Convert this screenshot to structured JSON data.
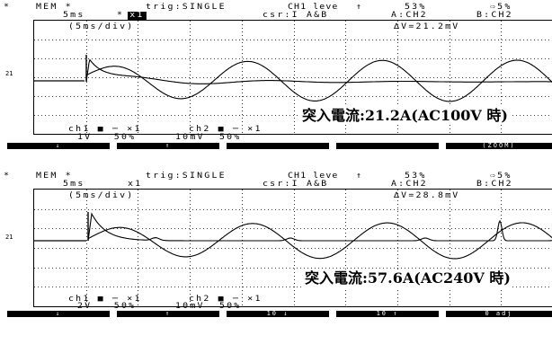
{
  "panels": [
    {
      "id": "top",
      "header": {
        "marker": "*",
        "mode": "MEM *",
        "timebase": "5ms",
        "mult_prefix": "*",
        "mult_rev": "x1",
        "trig_label": "trig:SINGLE",
        "ch1_level_label": "CH1 leve",
        "trig_slope": "↑",
        "trig_pos": "53%",
        "cursor_label": "csr:I A&B",
        "cursor_a": "A:CH2",
        "cursor_b": "B:CH2",
        "pretrig": "⇨5%",
        "div_label": "(5ms/div)",
        "delta_v": "∆V=21.2mV"
      },
      "ground_marker": "21",
      "footer": {
        "ch1": "ch1 ■ ─ ×1",
        "ch1_scale": "1V   50%",
        "ch2": "ch2 ■ ─ ×1",
        "ch2_scale": "10mV  50%"
      },
      "annotation": "突入電流:21.2A(AC100V 時)",
      "softkeys": [
        "↓",
        "↑",
        "",
        "",
        "(ZOOM)"
      ]
    },
    {
      "id": "bottom",
      "header": {
        "marker": "*",
        "mode": "MEM *",
        "timebase": "5ms",
        "mult_prefix": "",
        "mult_rev": "x1",
        "trig_label": "trig:SINGLE",
        "ch1_level_label": "CH1 leve",
        "trig_slope": "↑",
        "trig_pos": "53%",
        "cursor_label": "csr:I A&B",
        "cursor_a": "A:CH2",
        "cursor_b": "B:CH2",
        "pretrig": "⇨5%",
        "div_label": "(5ms/div)",
        "delta_v": "∆V=28.8mV"
      },
      "ground_marker": "21",
      "footer": {
        "ch1": "ch1 ■ ─ ×1",
        "ch1_scale": "2V   50%",
        "ch2": "ch2 ■ ─ ×1",
        "ch2_scale": "10mV  50%"
      },
      "annotation": "突入電流:57.6A(AC240V 時)",
      "softkeys": [
        "↓",
        "↑",
        "10 ↓",
        "10 ↑",
        "0 adj"
      ]
    }
  ]
}
